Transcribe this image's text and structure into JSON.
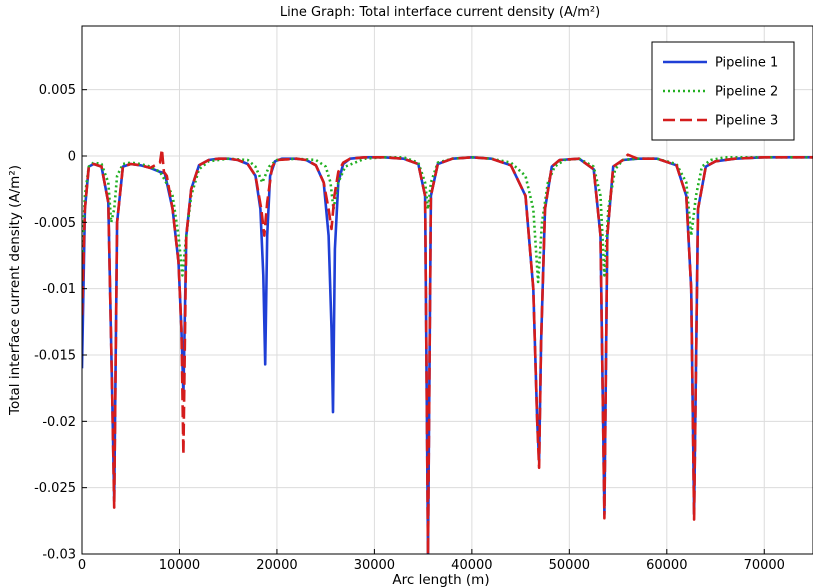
{
  "chart_data": {
    "type": "line",
    "title": "Line Graph: Total interface current density (A/m²)",
    "xlabel": "Arc length (m)",
    "ylabel": "Total interface current density (A/m²)",
    "xlim": [
      0,
      75000
    ],
    "ylim": [
      -0.03,
      0.0098
    ],
    "xticks": [
      0,
      10000,
      20000,
      30000,
      40000,
      50000,
      60000,
      70000
    ],
    "xtick_labels": [
      "0",
      "10000",
      "20000",
      "30000",
      "40000",
      "50000",
      "60000",
      "70000"
    ],
    "yticks": [
      0.005,
      0,
      -0.005,
      -0.01,
      -0.015,
      -0.02,
      -0.025,
      -0.03
    ],
    "ytick_labels": [
      "0.005",
      "0",
      "-0.005",
      "-0.01",
      "-0.015",
      "-0.02",
      "-0.025",
      "-0.03"
    ],
    "grid": true,
    "legend_position": "top-right",
    "series": [
      {
        "name": "Pipeline 1",
        "color": "#1f3fd6",
        "style": "solid",
        "x": [
          0,
          300,
          700,
          1200,
          2000,
          2700,
          3100,
          3300,
          3600,
          4200,
          5000,
          6000,
          7000,
          8000,
          8500,
          9300,
          9900,
          10200,
          10400,
          10700,
          11200,
          12000,
          13000,
          14000,
          15000,
          16000,
          17000,
          17800,
          18300,
          18600,
          18800,
          19000,
          19300,
          19800,
          20500,
          22000,
          23000,
          24000,
          24800,
          25300,
          25600,
          25750,
          25950,
          26300,
          26800,
          27500,
          29000,
          31000,
          33000,
          34500,
          35200,
          35500,
          35800,
          36500,
          38000,
          40000,
          42000,
          44000,
          45500,
          46300,
          46700,
          46900,
          47100,
          47500,
          48200,
          49000,
          51000,
          52500,
          53200,
          53600,
          53900,
          54500,
          55500,
          57000,
          59000,
          61000,
          62000,
          62500,
          62800,
          63200,
          64000,
          65000,
          67000,
          70000,
          75000
        ],
        "values": [
          -0.016,
          -0.004,
          -0.0008,
          -0.0006,
          -0.0008,
          -0.0035,
          -0.018,
          -0.026,
          -0.005,
          -0.0008,
          -0.0006,
          -0.0007,
          -0.0009,
          -0.0012,
          -0.0013,
          -0.004,
          -0.008,
          -0.013,
          -0.018,
          -0.006,
          -0.0025,
          -0.0007,
          -0.0003,
          -0.0002,
          -0.0002,
          -0.0003,
          -0.0006,
          -0.0015,
          -0.004,
          -0.009,
          -0.0157,
          -0.006,
          -0.0015,
          -0.0004,
          -0.0002,
          -0.0002,
          -0.0003,
          -0.0007,
          -0.002,
          -0.006,
          -0.013,
          -0.0193,
          -0.007,
          -0.002,
          -0.0006,
          -0.0002,
          -0.0001,
          -0.0001,
          -0.0002,
          -0.0006,
          -0.003,
          -0.03,
          -0.003,
          -0.0006,
          -0.0002,
          -0.0001,
          -0.0002,
          -0.0007,
          -0.003,
          -0.01,
          -0.02,
          -0.023,
          -0.014,
          -0.004,
          -0.0008,
          -0.0003,
          -0.0002,
          -0.001,
          -0.006,
          -0.027,
          -0.006,
          -0.0008,
          -0.0003,
          -0.0002,
          -0.0002,
          -0.0007,
          -0.003,
          -0.01,
          -0.027,
          -0.004,
          -0.0008,
          -0.0004,
          -0.0002,
          -0.0001,
          -0.0001
        ]
      },
      {
        "name": "Pipeline 2",
        "color": "#22b022",
        "style": "dotted",
        "x": [
          0,
          300,
          700,
          1200,
          2000,
          2700,
          3000,
          3300,
          3600,
          4200,
          5000,
          6000,
          7000,
          8000,
          8500,
          9300,
          9900,
          10300,
          10700,
          11200,
          12000,
          13000,
          15000,
          17000,
          17800,
          18500,
          19200,
          20000,
          22000,
          24000,
          25000,
          25500,
          25800,
          26300,
          27000,
          29000,
          31000,
          33000,
          34500,
          35200,
          35500,
          35800,
          36500,
          38000,
          40000,
          42000,
          44000,
          45500,
          46300,
          46800,
          47200,
          47800,
          48500,
          49500,
          51000,
          52500,
          53200,
          53600,
          54000,
          54700,
          55500,
          57000,
          59000,
          61000,
          62000,
          62500,
          63000,
          63600,
          64500,
          66000,
          70000,
          75000
        ],
        "values": [
          -0.008,
          -0.003,
          -0.0008,
          -0.0005,
          -0.0006,
          -0.002,
          -0.005,
          -0.004,
          -0.0015,
          -0.0006,
          -0.0005,
          -0.0006,
          -0.0008,
          -0.0012,
          -0.0018,
          -0.003,
          -0.006,
          -0.009,
          -0.006,
          -0.003,
          -0.001,
          -0.0004,
          -0.0002,
          -0.0003,
          -0.0008,
          -0.002,
          -0.0008,
          -0.0003,
          -0.0002,
          -0.0003,
          -0.0008,
          -0.002,
          -0.004,
          -0.002,
          -0.0008,
          -0.0002,
          -0.0001,
          -0.0001,
          -0.0005,
          -0.002,
          -0.004,
          -0.002,
          -0.0005,
          -0.0002,
          -0.0001,
          -0.0002,
          -0.0005,
          -0.0015,
          -0.004,
          -0.0095,
          -0.005,
          -0.002,
          -0.0008,
          -0.0003,
          -0.0002,
          -0.0008,
          -0.003,
          -0.009,
          -0.004,
          -0.001,
          -0.0003,
          -0.0002,
          -0.0002,
          -0.0006,
          -0.002,
          -0.006,
          -0.003,
          -0.0008,
          -0.0003,
          -0.0001,
          -0.0001,
          -0.0001
        ]
      },
      {
        "name": "Pipeline 3",
        "color": "#d41c1c",
        "style": "dashed",
        "x": [
          0,
          300,
          700,
          1200,
          2000,
          2700,
          3100,
          3300,
          3600,
          4200,
          5000,
          6000,
          7000,
          8000,
          8200,
          8400,
          8700,
          9300,
          9900,
          10200,
          10400,
          10700,
          11200,
          12000,
          13000,
          14000,
          15000,
          16000,
          17000,
          17800,
          18400,
          18700,
          19000,
          19500,
          20000,
          22000,
          23000,
          24000,
          24800,
          25300,
          25600,
          25900,
          26300,
          26800,
          27500,
          29000,
          31000,
          33000,
          34500,
          35200,
          35500,
          35800,
          36500,
          38000,
          40000,
          42000,
          44000,
          45500,
          46300,
          46700,
          46900,
          47100,
          47500,
          48200,
          49000,
          51000,
          52500,
          53200,
          53600,
          53900,
          54500,
          55500,
          56000,
          57000,
          59000,
          61000,
          62000,
          62500,
          62800,
          63200,
          64000,
          65000,
          67000,
          70000,
          75000
        ],
        "values": [
          -0.012,
          -0.004,
          -0.0008,
          -0.0006,
          -0.0008,
          -0.0035,
          -0.018,
          -0.0265,
          -0.005,
          -0.0008,
          -0.0006,
          -0.0007,
          -0.0009,
          -0.0005,
          0.0005,
          -0.0012,
          -0.0015,
          -0.004,
          -0.008,
          -0.013,
          -0.0225,
          -0.006,
          -0.0025,
          -0.0007,
          -0.0003,
          -0.0002,
          -0.0002,
          -0.0003,
          -0.0006,
          -0.0015,
          -0.004,
          -0.006,
          -0.0035,
          -0.0008,
          -0.0003,
          -0.0002,
          -0.0003,
          -0.0007,
          -0.002,
          -0.004,
          -0.0055,
          -0.003,
          -0.0012,
          -0.0005,
          -0.0002,
          -0.0001,
          -0.0001,
          -0.0002,
          -0.0006,
          -0.003,
          -0.03,
          -0.003,
          -0.0006,
          -0.0002,
          -0.0001,
          -0.0002,
          -0.0007,
          -0.003,
          -0.01,
          -0.02,
          -0.0235,
          -0.014,
          -0.004,
          -0.0008,
          -0.0003,
          -0.0002,
          -0.001,
          -0.006,
          -0.0273,
          -0.006,
          -0.0008,
          -0.0003,
          0.0001,
          -0.0002,
          -0.0002,
          -0.0007,
          -0.003,
          -0.01,
          -0.0274,
          -0.004,
          -0.0008,
          -0.0004,
          -0.0002,
          -0.0001,
          -0.0001
        ]
      }
    ]
  }
}
